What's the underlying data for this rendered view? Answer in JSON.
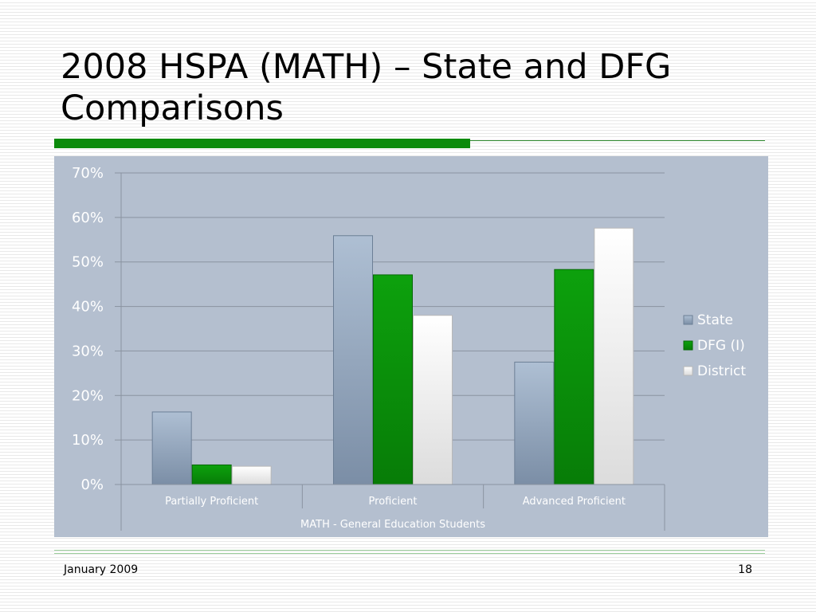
{
  "slide": {
    "title": "2008 HSPA (MATH) – State and DFG Comparisons",
    "footer_date": "January 2009",
    "page_number": "18"
  },
  "colors": {
    "accent_green": "#0b8a0b",
    "panel_bg": "#b4bfcf",
    "state": "#8fa3bb",
    "dfg": "#0a940a",
    "district": "#f4f4f4"
  },
  "chart_data": {
    "type": "bar",
    "categories": [
      "Partially Proficient",
      "Proficient",
      "Advanced Proficient"
    ],
    "group_label": "MATH - General Education Students",
    "series": [
      {
        "name": "State",
        "values": [
          16.3,
          55.9,
          27.5
        ]
      },
      {
        "name": "DFG (I)",
        "values": [
          4.4,
          47.1,
          48.3
        ]
      },
      {
        "name": "District",
        "values": [
          4.1,
          38.0,
          57.6
        ]
      }
    ],
    "yticks": [
      "0%",
      "10%",
      "20%",
      "30%",
      "40%",
      "50%",
      "60%",
      "70%"
    ],
    "ylim": [
      0,
      70
    ],
    "grid": true,
    "legend_position": "right"
  }
}
